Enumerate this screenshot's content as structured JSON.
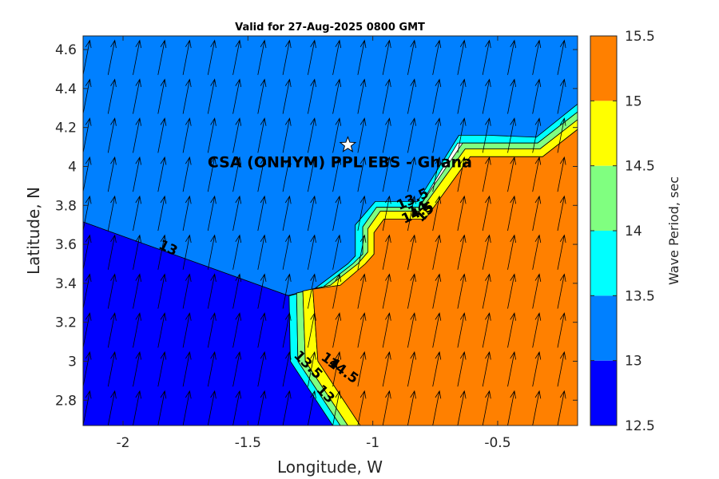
{
  "chart_data": {
    "type": "contour",
    "title": "Valid for 27-Aug-2025 0800 GMT",
    "xlabel": "Longitude, W",
    "ylabel": "Latitude, N",
    "xlim": [
      -2.16,
      -0.18
    ],
    "ylim": [
      2.67,
      4.67
    ],
    "xticks": [
      -2,
      -1.5,
      -1,
      -0.5
    ],
    "xtick_labels": [
      "-2",
      "-1.5",
      "-1",
      "-0.5"
    ],
    "yticks": [
      2.8,
      3.0,
      3.2,
      3.4,
      3.6,
      3.8,
      4.0,
      4.2,
      4.4,
      4.6
    ],
    "ytick_labels": [
      "2.8",
      "3",
      "3.2",
      "3.4",
      "3.6",
      "3.8",
      "4",
      "4.2",
      "4.4",
      "4.6"
    ],
    "colorbar": {
      "label": "Wave Period, sec",
      "range": [
        12.5,
        15.5
      ],
      "ticks": [
        12.5,
        13,
        13.5,
        14,
        14.5,
        15,
        15.5
      ],
      "tick_labels": [
        "12.5",
        "13",
        "13.5",
        "14",
        "14.5",
        "15",
        "15.5"
      ],
      "bands": [
        {
          "from": 12.5,
          "to": 13.0,
          "color": "#0000ff"
        },
        {
          "from": 13.0,
          "to": 13.5,
          "color": "#0080ff"
        },
        {
          "from": 13.5,
          "to": 14.0,
          "color": "#00ffff"
        },
        {
          "from": 14.0,
          "to": 14.5,
          "color": "#80ff80"
        },
        {
          "from": 14.5,
          "to": 15.0,
          "color": "#ffff00"
        },
        {
          "from": 15.0,
          "to": 15.5,
          "color": "#ff8000"
        }
      ]
    },
    "regions": [
      {
        "level": "13-13.5",
        "color": "#0080ff",
        "polygon": [
          [
            -2.16,
            4.67
          ],
          [
            -0.18,
            4.67
          ],
          [
            -0.18,
            4.32
          ],
          [
            -0.345,
            4.15
          ],
          [
            -0.36,
            4.15
          ],
          [
            -0.36,
            4.15
          ],
          [
            -0.54,
            4.15
          ],
          [
            -0.54,
            4.16
          ],
          [
            -0.655,
            4.16
          ],
          [
            -0.82,
            3.82
          ],
          [
            -0.99,
            3.82
          ],
          [
            -1.07,
            3.7
          ],
          [
            -1.07,
            3.54
          ],
          [
            -1.1,
            3.5
          ],
          [
            -1.235,
            3.37
          ],
          [
            -1.345,
            3.335
          ],
          [
            -2.16,
            3.715
          ]
        ]
      },
      {
        "level": "12.5-13",
        "color": "#0000ff",
        "polygon": [
          [
            -2.16,
            3.715
          ],
          [
            -1.335,
            3.335
          ],
          [
            -1.33,
            3.0
          ],
          [
            -1.16,
            2.67
          ],
          [
            -2.16,
            2.67
          ]
        ]
      },
      {
        "level": "13.5-14",
        "color": "#00ffff",
        "polygon": [
          [
            -0.18,
            4.32
          ],
          [
            -0.18,
            4.28
          ],
          [
            -0.34,
            4.12
          ],
          [
            -0.64,
            4.12
          ],
          [
            -0.66,
            4.12
          ],
          [
            -0.815,
            3.79
          ],
          [
            -0.985,
            3.79
          ],
          [
            -1.04,
            3.69
          ],
          [
            -1.04,
            3.55
          ],
          [
            -1.08,
            3.5
          ],
          [
            -1.2,
            3.38
          ],
          [
            -1.305,
            3.35
          ],
          [
            -1.3,
            3.0
          ],
          [
            -1.13,
            2.67
          ],
          [
            -1.16,
            2.67
          ],
          [
            -1.33,
            3.0
          ],
          [
            -1.335,
            3.335
          ],
          [
            -1.235,
            3.37
          ],
          [
            -1.1,
            3.5
          ],
          [
            -1.07,
            3.54
          ],
          [
            -1.07,
            3.7
          ],
          [
            -0.99,
            3.82
          ],
          [
            -0.82,
            3.82
          ],
          [
            -0.655,
            4.16
          ],
          [
            -0.54,
            4.16
          ],
          [
            -0.345,
            4.15
          ]
        ]
      },
      {
        "level": "14-14.5",
        "color": "#80ff80",
        "polygon": [
          [
            -0.18,
            4.28
          ],
          [
            -0.18,
            4.24
          ],
          [
            -0.33,
            4.09
          ],
          [
            -0.63,
            4.09
          ],
          [
            -0.81,
            3.77
          ],
          [
            -0.97,
            3.77
          ],
          [
            -1.02,
            3.68
          ],
          [
            -1.02,
            3.56
          ],
          [
            -1.06,
            3.5
          ],
          [
            -1.17,
            3.39
          ],
          [
            -1.28,
            3.36
          ],
          [
            -1.27,
            3.0
          ],
          [
            -1.1,
            2.67
          ],
          [
            -1.13,
            2.67
          ],
          [
            -1.3,
            3.0
          ],
          [
            -1.305,
            3.35
          ],
          [
            -1.2,
            3.38
          ],
          [
            -1.08,
            3.5
          ],
          [
            -1.04,
            3.55
          ],
          [
            -1.04,
            3.69
          ],
          [
            -0.985,
            3.79
          ],
          [
            -0.815,
            3.79
          ],
          [
            -0.64,
            4.12
          ],
          [
            -0.34,
            4.12
          ]
        ]
      },
      {
        "level": "14.5-15",
        "color": "#ffff00",
        "polygon": [
          [
            -0.18,
            4.24
          ],
          [
            -0.18,
            4.19
          ],
          [
            -0.32,
            4.05
          ],
          [
            -0.61,
            4.05
          ],
          [
            -0.79,
            3.73
          ],
          [
            -0.955,
            3.73
          ],
          [
            -0.995,
            3.66
          ],
          [
            -0.995,
            3.55
          ],
          [
            -1.03,
            3.5
          ],
          [
            -1.13,
            3.39
          ],
          [
            -1.24,
            3.37
          ],
          [
            -1.22,
            3.0
          ],
          [
            -1.05,
            2.67
          ],
          [
            -1.1,
            2.67
          ],
          [
            -1.27,
            3.0
          ],
          [
            -1.28,
            3.36
          ],
          [
            -1.17,
            3.39
          ],
          [
            -1.06,
            3.5
          ],
          [
            -1.02,
            3.56
          ],
          [
            -1.02,
            3.68
          ],
          [
            -0.97,
            3.77
          ],
          [
            -0.81,
            3.77
          ],
          [
            -0.63,
            4.09
          ],
          [
            -0.33,
            4.09
          ]
        ]
      },
      {
        "level": "15-15.5",
        "color": "#ff8000",
        "polygon": [
          [
            -0.18,
            4.19
          ],
          [
            -0.32,
            4.05
          ],
          [
            -0.61,
            4.05
          ],
          [
            -0.79,
            3.73
          ],
          [
            -0.955,
            3.73
          ],
          [
            -0.995,
            3.66
          ],
          [
            -0.995,
            3.55
          ],
          [
            -1.03,
            3.5
          ],
          [
            -1.13,
            3.39
          ],
          [
            -1.24,
            3.37
          ],
          [
            -1.22,
            3.0
          ],
          [
            -1.05,
            2.67
          ],
          [
            -0.18,
            2.67
          ]
        ]
      }
    ],
    "contour_labels": [
      {
        "text": "13",
        "lon": -1.82,
        "lat": 3.58,
        "angle": 25
      },
      {
        "text": "13.5",
        "lon": -0.84,
        "lat": 3.83,
        "angle": -25
      },
      {
        "text": "14",
        "lon": -0.82,
        "lat": 3.78,
        "angle": -25
      },
      {
        "text": "14.5",
        "lon": -0.82,
        "lat": 3.76,
        "angle": -25
      },
      {
        "text": "15",
        "lon": -0.79,
        "lat": 3.76,
        "angle": -45
      },
      {
        "text": "14",
        "lon": -1.17,
        "lat": 3.0,
        "angle": 35
      },
      {
        "text": "14.5",
        "lon": -1.12,
        "lat": 2.95,
        "angle": 35
      },
      {
        "text": "13.5",
        "lon": -1.26,
        "lat": 2.98,
        "angle": 45
      },
      {
        "text": "13",
        "lon": -1.19,
        "lat": 2.83,
        "angle": 45
      }
    ],
    "site": {
      "label": "CSA (ONHYM) PPL EBS  - Ghana",
      "lon": -1.1,
      "lat": 4.11
    },
    "vectors": {
      "lon_start": -2.16,
      "lon_step": 0.1,
      "lon_count": 20,
      "lat_start": 2.67,
      "lat_step": 0.2,
      "lat_count": 10,
      "direction_deg_from_north": 11,
      "color": "#000000"
    }
  }
}
